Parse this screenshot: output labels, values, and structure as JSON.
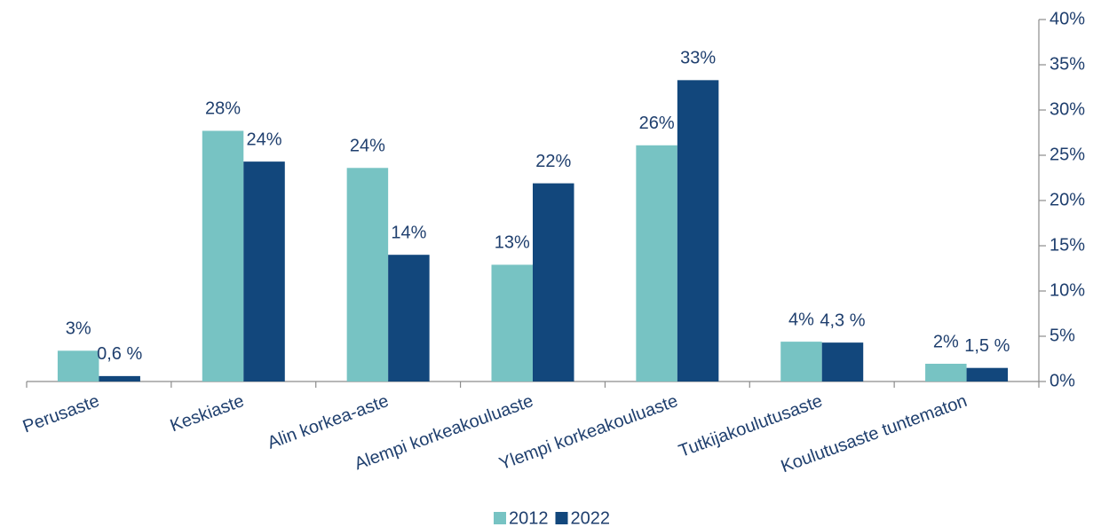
{
  "chart_data": {
    "type": "bar",
    "categories": [
      "Perusaste",
      "Keskiaste",
      "Alin korkea-aste",
      "Alempi korkeakouluaste",
      "Ylempi korkeakouluaste",
      "Tutkijakoulutusaste",
      "Koulutusaste tuntematon"
    ],
    "series": [
      {
        "name": "2012",
        "color": "#77c3c3",
        "values": [
          3.4,
          27.7,
          23.6,
          12.9,
          26.1,
          4.4,
          1.96
        ],
        "value_labels": [
          "3%",
          "28%",
          "24%",
          "13%",
          "26%",
          "4%",
          "2%"
        ]
      },
      {
        "name": "2022",
        "color": "#12477c",
        "values": [
          0.6,
          24.3,
          14.0,
          21.9,
          33.3,
          4.3,
          1.5
        ],
        "value_labels": [
          "0,6 %",
          "24%",
          "14%",
          "22%",
          "33%",
          "4,3 %",
          "1,5 %"
        ]
      }
    ],
    "ylim": [
      0,
      40
    ],
    "yticks": [
      {
        "value": 0,
        "label": "0%"
      },
      {
        "value": 5,
        "label": "5%"
      },
      {
        "value": 10,
        "label": "10%"
      },
      {
        "value": 15,
        "label": "15%"
      },
      {
        "value": 20,
        "label": "20%"
      },
      {
        "value": 25,
        "label": "25%"
      },
      {
        "value": 30,
        "label": "30%"
      },
      {
        "value": 35,
        "label": "35%"
      },
      {
        "value": 40,
        "label": "40%"
      }
    ],
    "y_axis_side": "right",
    "legend": "bottom"
  }
}
